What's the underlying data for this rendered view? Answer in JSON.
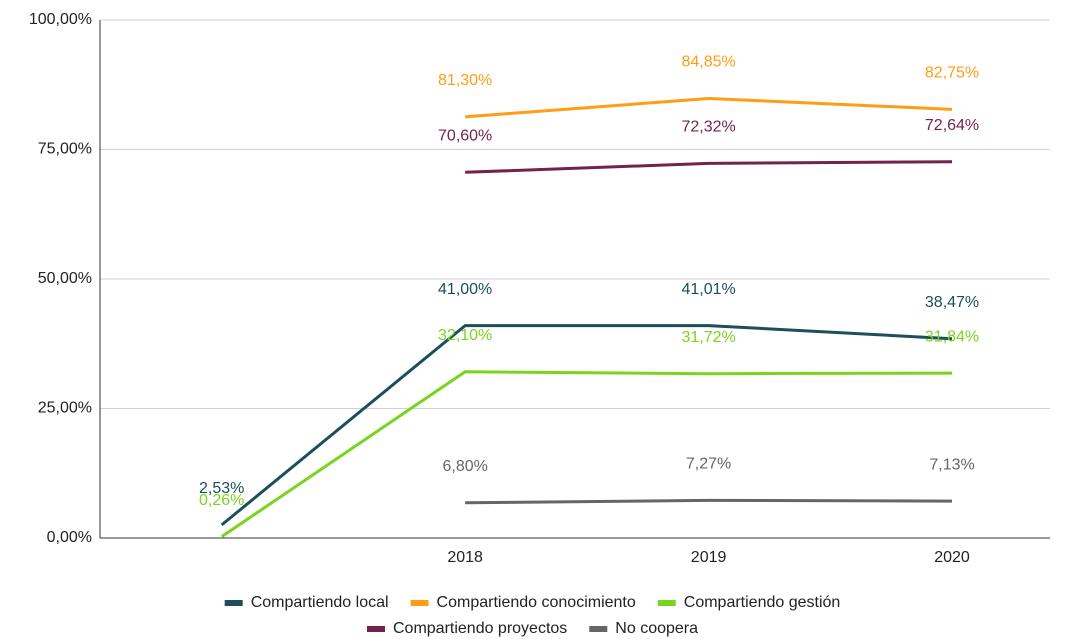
{
  "chart_data": {
    "type": "line",
    "categories": [
      null,
      "2018",
      "2019",
      "2020"
    ],
    "series": [
      {
        "name": "Compartiendo local",
        "color": "#1c4e5b",
        "values": [
          2.53,
          41.0,
          41.01,
          38.47
        ],
        "value_labels": [
          "2,53%",
          "41,00%",
          "41,01%",
          "38,47%"
        ]
      },
      {
        "name": "Compartiendo conocimiento",
        "color": "#ff9d14",
        "values": [
          null,
          81.3,
          84.85,
          82.75
        ],
        "value_labels": [
          null,
          "81,30%",
          "84,85%",
          "82,75%"
        ]
      },
      {
        "name": "Compartiendo gestión",
        "color": "#7ad41f",
        "values": [
          0.26,
          32.1,
          31.72,
          31.84
        ],
        "value_labels": [
          "0,26%",
          "32,10%",
          "31,72%",
          "31,84%"
        ]
      },
      {
        "name": "Compartiendo proyectos",
        "color": "#73234b",
        "values": [
          null,
          70.6,
          72.32,
          72.64
        ],
        "value_labels": [
          null,
          "70,60%",
          "72,32%",
          "72,64%"
        ]
      },
      {
        "name": "No coopera",
        "color": "#666666",
        "values": [
          null,
          6.8,
          7.27,
          7.13
        ],
        "value_labels": [
          null,
          "6,80%",
          "7,27%",
          "7,13%"
        ]
      }
    ],
    "ylim": [
      0,
      100
    ],
    "yticks": [
      {
        "value": 0,
        "label": "0,00%"
      },
      {
        "value": 25,
        "label": "25,00%"
      },
      {
        "value": 50,
        "label": "50,00%"
      },
      {
        "value": 75,
        "label": "75,00%"
      },
      {
        "value": 100,
        "label": "100,00%"
      }
    ],
    "grid": true,
    "legend": "bottom"
  }
}
